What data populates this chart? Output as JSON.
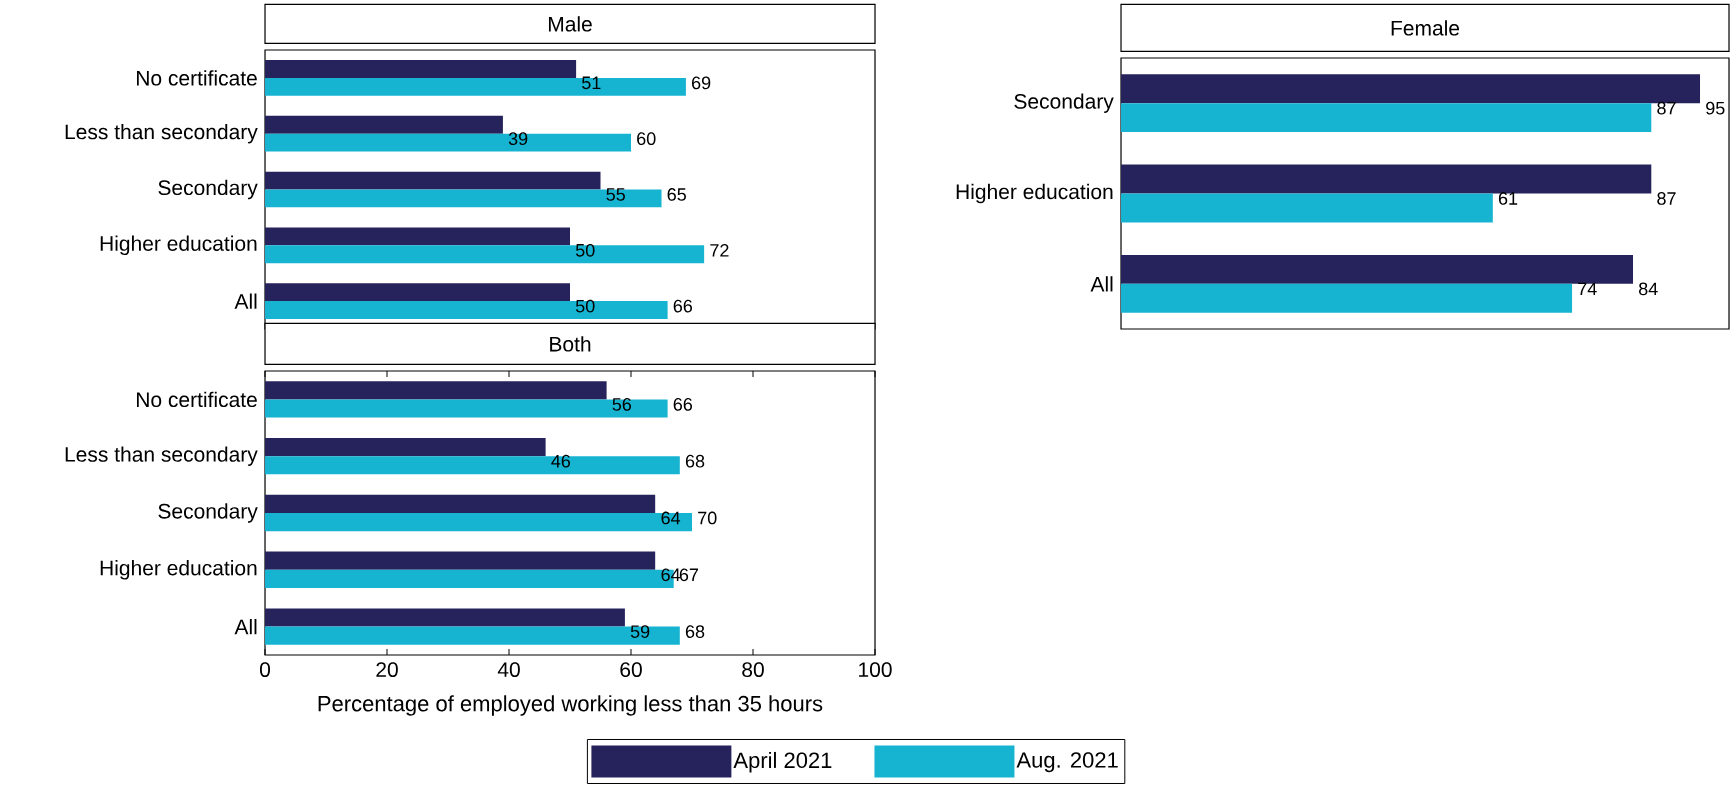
{
  "chart_data": [
    {
      "type": "bar",
      "orientation": "horizontal",
      "title": "Male",
      "categories": [
        "No certificate",
        "Less than secondary",
        "Secondary",
        "Higher education",
        "All"
      ],
      "xlim": [
        0,
        100
      ],
      "tick_labels": "y",
      "data_labels": true,
      "series": [
        {
          "color": "#26235c",
          "values": [
            51,
            39,
            55,
            50,
            50
          ]
        },
        {
          "color": "#17b4d2",
          "values": [
            69,
            60,
            65,
            72,
            66
          ]
        }
      ]
    },
    {
      "type": "bar",
      "orientation": "horizontal",
      "title": "Both",
      "xlabel": "Percentage of employed working less than 35 hours",
      "categories": [
        "No certificate",
        "Less than secondary",
        "Secondary",
        "Higher education",
        "All"
      ],
      "xlim": [
        0,
        100
      ],
      "xticks": [
        0,
        20,
        40,
        60,
        80,
        100
      ],
      "data_labels": true,
      "legend": "bottom",
      "series": [
        {
          "name": "April 2021",
          "color": "#26235c",
          "values": [
            56,
            46,
            64,
            64,
            59
          ]
        },
        {
          "name": "Aug. 2021",
          "color": "#17b4d2",
          "values": [
            66,
            68,
            70,
            67,
            68
          ]
        }
      ]
    },
    {
      "type": "bar",
      "orientation": "horizontal",
      "title": "Female",
      "categories": [
        "Secondary",
        "Higher education",
        "All"
      ],
      "tick_labels": "y",
      "data_labels": true,
      "series": [
        {
          "color": "#26235c",
          "values": [
            95,
            87,
            84
          ]
        },
        {
          "color": "#17b4d2",
          "values": [
            87,
            61,
            74
          ]
        }
      ]
    }
  ]
}
